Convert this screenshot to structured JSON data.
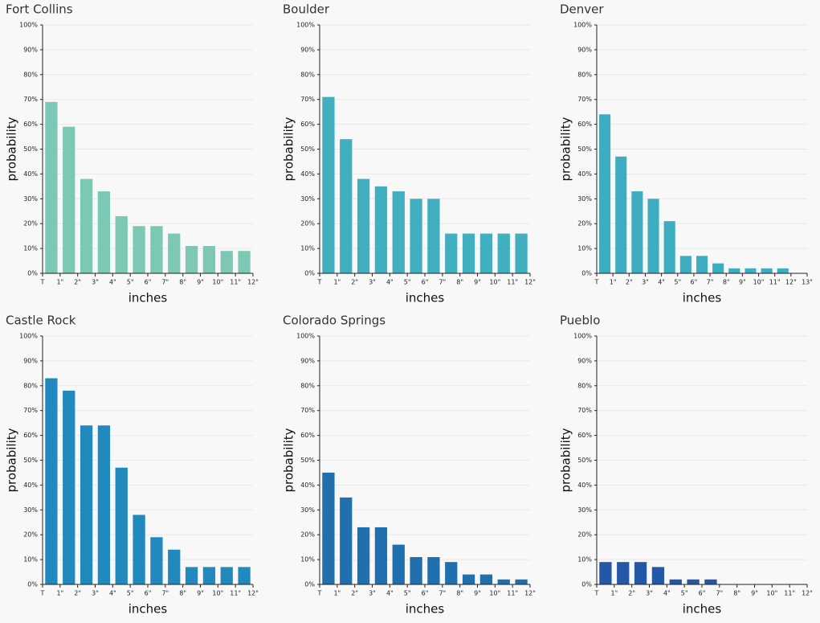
{
  "chart_data": [
    {
      "type": "bar",
      "title": "Fort Collins",
      "xlabel": "inches",
      "ylabel": "probability",
      "color": "#7cc8b4",
      "xticks": [
        "T",
        "1\"",
        "2\"",
        "3\"",
        "4\"",
        "5\"",
        "6\"",
        "7\"",
        "8\"",
        "9\"",
        "10\"",
        "11\"",
        "12\""
      ],
      "values": [
        69,
        59,
        38,
        33,
        23,
        19,
        19,
        16,
        11,
        11,
        9,
        9
      ],
      "ylim": [
        0,
        100
      ],
      "grid": true,
      "yticks": [
        {
          "value": 0,
          "label": "0%"
        },
        {
          "value": 10,
          "label": "10%"
        },
        {
          "value": 20,
          "label": "20%"
        },
        {
          "value": 30,
          "label": "30%"
        },
        {
          "value": 40,
          "label": "40%"
        },
        {
          "value": 50,
          "label": "50%"
        },
        {
          "value": 60,
          "label": "60%"
        },
        {
          "value": 70,
          "label": "70%"
        },
        {
          "value": 80,
          "label": "80%"
        },
        {
          "value": 90,
          "label": "90%"
        },
        {
          "value": 100,
          "label": "100%"
        }
      ]
    },
    {
      "type": "bar",
      "title": "Boulder",
      "xlabel": "inches",
      "ylabel": "probability",
      "color": "#41afc0",
      "xticks": [
        "T",
        "1\"",
        "2\"",
        "3\"",
        "4\"",
        "5\"",
        "6\"",
        "7\"",
        "8\"",
        "9\"",
        "10\"",
        "11\"",
        "12\""
      ],
      "values": [
        71,
        54,
        38,
        35,
        33,
        30,
        30,
        16,
        16,
        16,
        16,
        16
      ],
      "ylim": [
        0,
        100
      ],
      "grid": true,
      "yticks": [
        {
          "value": 0,
          "label": "0%"
        },
        {
          "value": 10,
          "label": "10%"
        },
        {
          "value": 20,
          "label": "20%"
        },
        {
          "value": 30,
          "label": "30%"
        },
        {
          "value": 40,
          "label": "40%"
        },
        {
          "value": 50,
          "label": "50%"
        },
        {
          "value": 60,
          "label": "60%"
        },
        {
          "value": 70,
          "label": "70%"
        },
        {
          "value": 80,
          "label": "80%"
        },
        {
          "value": 90,
          "label": "90%"
        },
        {
          "value": 100,
          "label": "100%"
        }
      ]
    },
    {
      "type": "bar",
      "title": "Denver",
      "xlabel": "inches",
      "ylabel": "probability",
      "color": "#3eadc2",
      "xticks": [
        "T",
        "1\"",
        "2\"",
        "3\"",
        "4\"",
        "5\"",
        "6\"",
        "7\"",
        "8\"",
        "9\"",
        "10\"",
        "11\"",
        "12\"",
        "13\""
      ],
      "values": [
        64,
        47,
        33,
        30,
        21,
        7,
        7,
        4,
        2,
        2,
        2,
        2
      ],
      "ylim": [
        0,
        100
      ],
      "grid": true,
      "yticks": [
        {
          "value": 0,
          "label": "0%"
        },
        {
          "value": 10,
          "label": "10%"
        },
        {
          "value": 20,
          "label": "20%"
        },
        {
          "value": 30,
          "label": "30%"
        },
        {
          "value": 40,
          "label": "40%"
        },
        {
          "value": 50,
          "label": "50%"
        },
        {
          "value": 60,
          "label": "60%"
        },
        {
          "value": 70,
          "label": "70%"
        },
        {
          "value": 80,
          "label": "80%"
        },
        {
          "value": 90,
          "label": "90%"
        },
        {
          "value": 100,
          "label": "100%"
        }
      ]
    },
    {
      "type": "bar",
      "title": "Castle Rock",
      "xlabel": "inches",
      "ylabel": "probability",
      "color": "#2189bd",
      "xticks": [
        "T",
        "1\"",
        "2\"",
        "3\"",
        "4\"",
        "5\"",
        "6\"",
        "7\"",
        "8\"",
        "9\"",
        "10\"",
        "11\"",
        "12\""
      ],
      "values": [
        83,
        78,
        64,
        64,
        47,
        28,
        19,
        14,
        7,
        7,
        7,
        7
      ],
      "ylim": [
        0,
        100
      ],
      "grid": true,
      "yticks": [
        {
          "value": 0,
          "label": "0%"
        },
        {
          "value": 10,
          "label": "10%"
        },
        {
          "value": 20,
          "label": "20%"
        },
        {
          "value": 30,
          "label": "30%"
        },
        {
          "value": 40,
          "label": "40%"
        },
        {
          "value": 50,
          "label": "50%"
        },
        {
          "value": 60,
          "label": "60%"
        },
        {
          "value": 70,
          "label": "70%"
        },
        {
          "value": 80,
          "label": "80%"
        },
        {
          "value": 90,
          "label": "90%"
        },
        {
          "value": 100,
          "label": "100%"
        }
      ]
    },
    {
      "type": "bar",
      "title": "Colorado Springs",
      "xlabel": "inches",
      "ylabel": "probability",
      "color": "#2070b0",
      "xticks": [
        "T",
        "1\"",
        "2\"",
        "3\"",
        "4\"",
        "5\"",
        "6\"",
        "7\"",
        "8\"",
        "9\"",
        "10\"",
        "11\"",
        "12\""
      ],
      "values": [
        45,
        35,
        23,
        23,
        16,
        11,
        11,
        9,
        4,
        4,
        2,
        2
      ],
      "ylim": [
        0,
        100
      ],
      "grid": true,
      "yticks": [
        {
          "value": 0,
          "label": "0%"
        },
        {
          "value": 10,
          "label": "10%"
        },
        {
          "value": 20,
          "label": "20%"
        },
        {
          "value": 30,
          "label": "30%"
        },
        {
          "value": 40,
          "label": "40%"
        },
        {
          "value": 50,
          "label": "50%"
        },
        {
          "value": 60,
          "label": "60%"
        },
        {
          "value": 70,
          "label": "70%"
        },
        {
          "value": 80,
          "label": "80%"
        },
        {
          "value": 90,
          "label": "90%"
        },
        {
          "value": 100,
          "label": "100%"
        }
      ]
    },
    {
      "type": "bar",
      "title": "Pueblo",
      "xlabel": "inches",
      "ylabel": "probability",
      "color": "#2457a6",
      "xticks": [
        "T",
        "1\"",
        "2\"",
        "3\"",
        "4\"",
        "5\"",
        "6\"",
        "7\"",
        "8\"",
        "9\"",
        "10\"",
        "11\"",
        "12\""
      ],
      "values": [
        9,
        9,
        9,
        7,
        2,
        2,
        2
      ],
      "ylim": [
        0,
        100
      ],
      "grid": true,
      "yticks": [
        {
          "value": 0,
          "label": "0%"
        },
        {
          "value": 10,
          "label": "10%"
        },
        {
          "value": 20,
          "label": "20%"
        },
        {
          "value": 30,
          "label": "30%"
        },
        {
          "value": 40,
          "label": "40%"
        },
        {
          "value": 50,
          "label": "50%"
        },
        {
          "value": 60,
          "label": "60%"
        },
        {
          "value": 70,
          "label": "70%"
        },
        {
          "value": 80,
          "label": "80%"
        },
        {
          "value": 90,
          "label": "90%"
        },
        {
          "value": 100,
          "label": "100%"
        }
      ]
    }
  ]
}
